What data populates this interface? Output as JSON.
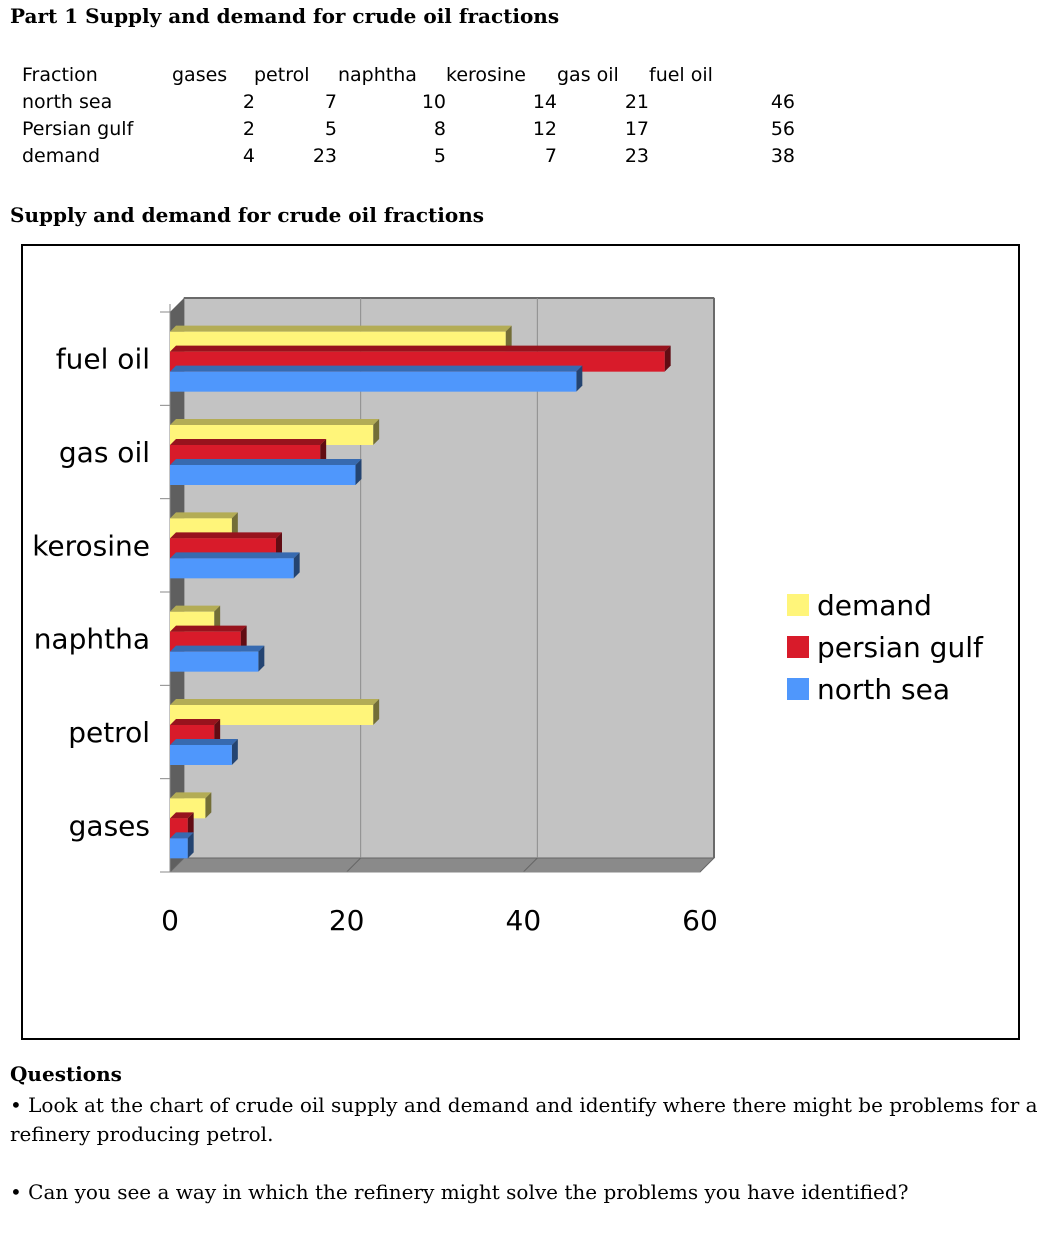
{
  "heading": "Part 1 Supply and demand for crude oil fractions",
  "table": {
    "header": [
      "Fraction",
      "gases",
      "petrol",
      "naphtha",
      "kerosine",
      "gas oil",
      "fuel oil"
    ],
    "rows": [
      {
        "label": "north sea",
        "values": [
          "2",
          "7",
          "10",
          "14",
          "21",
          "46"
        ]
      },
      {
        "label": "Persian gulf",
        "values": [
          "2",
          "5",
          "8",
          "12",
          "17",
          "56"
        ]
      },
      {
        "label": "demand",
        "values": [
          "4",
          "23",
          "5",
          "7",
          "23",
          "38"
        ]
      }
    ]
  },
  "chart_heading": "Supply and demand for crude oil fractions",
  "chart_data": {
    "type": "bar",
    "orientation": "horizontal",
    "three_d": true,
    "categories": [
      "gases",
      "petrol",
      "naphtha",
      "kerosine",
      "gas oil",
      "fuel oil"
    ],
    "series": [
      {
        "name": "north sea",
        "values": [
          2,
          7,
          10,
          14,
          21,
          46
        ],
        "color": "#4f97fc"
      },
      {
        "name": "persian gulf",
        "values": [
          2,
          5,
          8,
          12,
          17,
          56
        ],
        "color": "#d81b2a"
      },
      {
        "name": "demand",
        "values": [
          4,
          23,
          5,
          7,
          23,
          38
        ],
        "color": "#fff57a"
      }
    ],
    "legend_order": [
      "demand",
      "persian gulf",
      "north sea"
    ],
    "xlim": [
      0,
      60
    ],
    "x_ticks": [
      0,
      20,
      40,
      60
    ],
    "grid": true,
    "legend_position": "right",
    "plot_background": "#c3c3c3"
  },
  "questions": {
    "title": "Questions",
    "items": [
      "• Look at the chart of crude oil supply and demand and identify where there might be problems for a refinery producing petrol.",
      "•  Can you see a way in which the refinery might solve the problems you have identified?"
    ]
  }
}
